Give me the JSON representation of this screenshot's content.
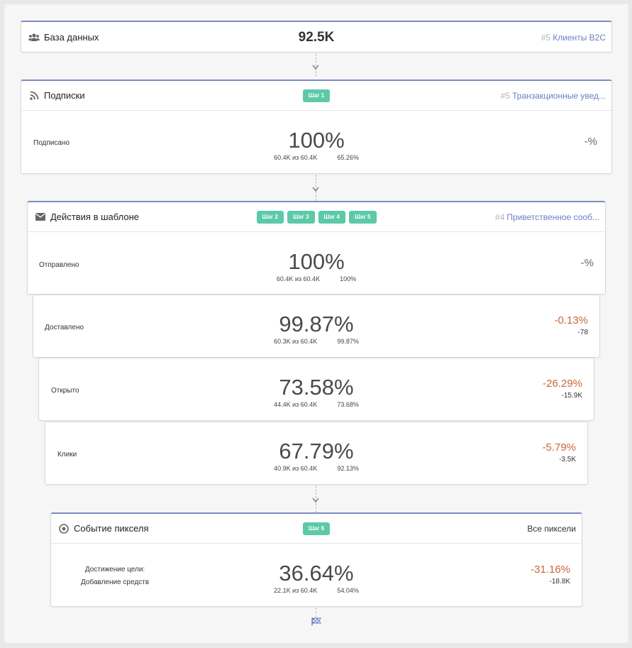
{
  "database": {
    "title": "База данных",
    "count": "92.5K",
    "segment_num": "#5",
    "segment_name": "Клиенты B2C"
  },
  "subscriptions": {
    "title": "Подписки",
    "steps": [
      "Шаг 1"
    ],
    "link_num": "#5",
    "link_name": "Транзакционные увед...",
    "rows": [
      {
        "label": "Подписано",
        "pct": "100%",
        "count": "60.4K из 60.4K",
        "rate": "65.26%",
        "delta": "-%",
        "delta_abs": ""
      }
    ]
  },
  "template": {
    "title": "Действия в шаблоне",
    "steps": [
      "Шаг 2",
      "Шаг 3",
      "Шаг 4",
      "Шаг 5"
    ],
    "link_num": "#4",
    "link_name": "Приветственное сооб...",
    "rows": [
      {
        "label": "Отправлено",
        "pct": "100%",
        "count": "60.4K из 60.4K",
        "rate": "100%",
        "delta": "-%",
        "delta_abs": ""
      },
      {
        "label": "Доставлено",
        "pct": "99.87%",
        "count": "60.3K из 60.4K",
        "rate": "99.87%",
        "delta": "-0.13%",
        "delta_abs": "-78"
      },
      {
        "label": "Открыто",
        "pct": "73.58%",
        "count": "44.4K из 60.4K",
        "rate": "73.68%",
        "delta": "-26.29%",
        "delta_abs": "-15.9K"
      },
      {
        "label": "Клики",
        "pct": "67.79%",
        "count": "40.9K из 60.4K",
        "rate": "92.13%",
        "delta": "-5.79%",
        "delta_abs": "-3.5K"
      }
    ]
  },
  "pixel": {
    "title": "Событие пикселя",
    "steps": [
      "Шаг 6"
    ],
    "scope": "Все пиксели",
    "goal_label_1": "Достижение цели:",
    "goal_label_2": "Добавление средств",
    "pct": "36.64%",
    "count": "22.1K из 60.4K",
    "rate": "54.04%",
    "delta": "-31.16%",
    "delta_abs": "-18.8K"
  },
  "colors": {
    "accent": "#7b8bc6",
    "badge": "#5cc9a7",
    "negative": "#c9663b"
  },
  "icons": {
    "database": "users-icon",
    "subscriptions": "rss-icon",
    "template": "envelope-icon",
    "pixel": "target-icon",
    "finish": "finish-flag-icon"
  }
}
